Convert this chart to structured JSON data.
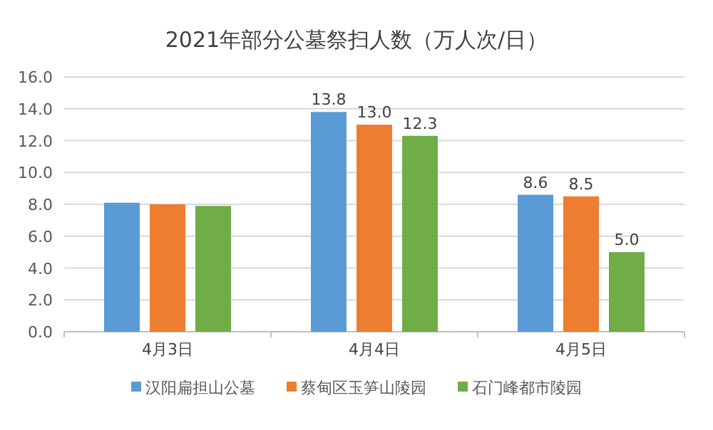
{
  "chart_data": {
    "type": "bar",
    "title": "2021年部分公墓祭扫人数（万人次/日）",
    "categories": [
      "4月3日",
      "4月4日",
      "4月5日"
    ],
    "series": [
      {
        "name": "汉阳扁担山公墓",
        "color": "#5b9bd5",
        "values": [
          8.1,
          13.8,
          8.6
        ],
        "value_labels": [
          null,
          "13.8",
          "8.6"
        ]
      },
      {
        "name": "蔡甸区玉笋山陵园",
        "color": "#ed7d31",
        "values": [
          8.0,
          13.0,
          8.5
        ],
        "value_labels": [
          null,
          "13.0",
          "8.5"
        ]
      },
      {
        "name": "石门峰都市陵园",
        "color": "#70ad47",
        "values": [
          7.9,
          12.3,
          5.0
        ],
        "value_labels": [
          null,
          "12.3",
          "5.0"
        ]
      }
    ],
    "ylim": [
      0,
      16
    ],
    "yticks": [
      {
        "value": 0,
        "label": "0.0"
      },
      {
        "value": 2,
        "label": "2.0"
      },
      {
        "value": 4,
        "label": "4.0"
      },
      {
        "value": 6,
        "label": "6.0"
      },
      {
        "value": 8,
        "label": "8.0"
      },
      {
        "value": 10,
        "label": "10.0"
      },
      {
        "value": 12,
        "label": "12.0"
      },
      {
        "value": 14,
        "label": "14.0"
      },
      {
        "value": 16,
        "label": "16.0"
      }
    ],
    "grid": "y",
    "legend": "bottom"
  }
}
